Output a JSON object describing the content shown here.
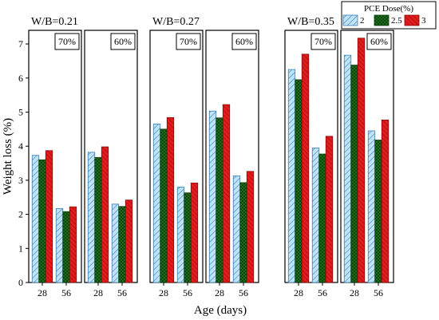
{
  "chart_data": {
    "type": "bar",
    "xlabel": "Age (days)",
    "ylabel": "Weight loss (%)",
    "ylim": [
      0,
      7.4
    ],
    "yticks": [
      0,
      1,
      2,
      3,
      4,
      5,
      6,
      7
    ],
    "categories": [
      "28",
      "56"
    ],
    "legend": {
      "title": "PCE Dose(%)",
      "placement": "top-right",
      "entries": [
        {
          "name": "2",
          "color": "#bfe3f7",
          "pattern": "hatch"
        },
        {
          "name": "2.5",
          "color": "#1f7a1f",
          "pattern": "crosshatch"
        },
        {
          "name": "3",
          "color": "#e21c1c",
          "pattern": "hatch"
        }
      ]
    },
    "groups": [
      {
        "label": "W/B=0.21",
        "panels": [
          {
            "label": "70%",
            "series": [
              {
                "name": "2",
                "values": [
                  3.73,
                  2.17
                ]
              },
              {
                "name": "2.5",
                "values": [
                  3.6,
                  2.08
                ]
              },
              {
                "name": "3",
                "values": [
                  3.87,
                  2.22
                ]
              }
            ]
          },
          {
            "label": "60%",
            "series": [
              {
                "name": "2",
                "values": [
                  3.82,
                  2.3
                ]
              },
              {
                "name": "2.5",
                "values": [
                  3.67,
                  2.23
                ]
              },
              {
                "name": "3",
                "values": [
                  3.98,
                  2.42
                ]
              }
            ]
          }
        ]
      },
      {
        "label": "W/B=0.27",
        "panels": [
          {
            "label": "70%",
            "series": [
              {
                "name": "2",
                "values": [
                  4.65,
                  2.8
                ]
              },
              {
                "name": "2.5",
                "values": [
                  4.5,
                  2.63
                ]
              },
              {
                "name": "3",
                "values": [
                  4.84,
                  2.92
                ]
              }
            ]
          },
          {
            "label": "60%",
            "series": [
              {
                "name": "2",
                "values": [
                  5.03,
                  3.13
                ]
              },
              {
                "name": "2.5",
                "values": [
                  4.83,
                  2.93
                ]
              },
              {
                "name": "3",
                "values": [
                  5.22,
                  3.26
                ]
              }
            ]
          }
        ]
      },
      {
        "label": "W/B=0.35",
        "panels": [
          {
            "label": "70%",
            "series": [
              {
                "name": "2",
                "values": [
                  6.25,
                  3.95
                ]
              },
              {
                "name": "2.5",
                "values": [
                  5.95,
                  3.77
                ]
              },
              {
                "name": "3",
                "values": [
                  6.7,
                  4.29
                ]
              }
            ]
          },
          {
            "label": "60%",
            "series": [
              {
                "name": "2",
                "values": [
                  6.67,
                  4.45
                ]
              },
              {
                "name": "2.5",
                "values": [
                  6.38,
                  4.18
                ]
              },
              {
                "name": "3",
                "values": [
                  7.17,
                  4.77
                ]
              }
            ]
          }
        ]
      }
    ]
  }
}
